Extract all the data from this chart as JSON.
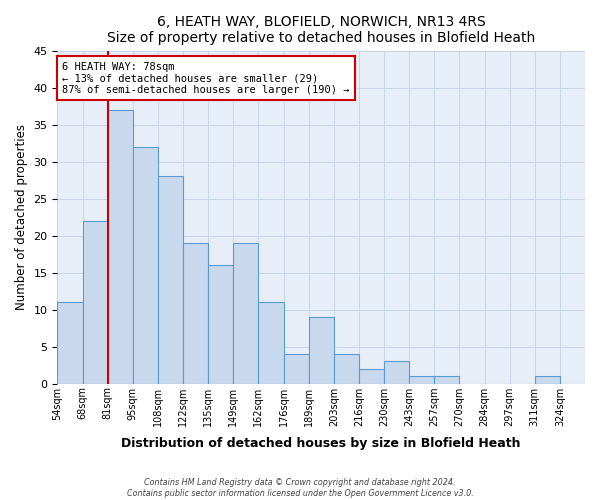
{
  "title": "6, HEATH WAY, BLOFIELD, NORWICH, NR13 4RS",
  "subtitle": "Size of property relative to detached houses in Blofield Heath",
  "xlabel": "Distribution of detached houses by size in Blofield Heath",
  "ylabel": "Number of detached properties",
  "bar_labels": [
    "54sqm",
    "68sqm",
    "81sqm",
    "95sqm",
    "108sqm",
    "122sqm",
    "135sqm",
    "149sqm",
    "162sqm",
    "176sqm",
    "189sqm",
    "203sqm",
    "216sqm",
    "230sqm",
    "243sqm",
    "257sqm",
    "270sqm",
    "284sqm",
    "297sqm",
    "311sqm",
    "324sqm"
  ],
  "bar_values": [
    11,
    22,
    37,
    32,
    28,
    19,
    16,
    19,
    11,
    4,
    9,
    4,
    2,
    3,
    1,
    1,
    0,
    0,
    0,
    1,
    0
  ],
  "bar_color": "#c9d9ed",
  "bar_edge_color": "#5b9bd5",
  "vline_x": 2,
  "vline_color": "#cc0000",
  "annotation_title": "6 HEATH WAY: 78sqm",
  "annotation_line1": "← 13% of detached houses are smaller (29)",
  "annotation_line2": "87% of semi-detached houses are larger (190) →",
  "annotation_box_color": "#cc0000",
  "ylim": [
    0,
    45
  ],
  "yticks": [
    0,
    5,
    10,
    15,
    20,
    25,
    30,
    35,
    40,
    45
  ],
  "footer1": "Contains HM Land Registry data © Crown copyright and database right 2024.",
  "footer2": "Contains public sector information licensed under the Open Government Licence v3.0.",
  "plot_bg_color": "#e8eef7",
  "fig_bg_color": "#ffffff",
  "grid_color": "#c8d4e8"
}
